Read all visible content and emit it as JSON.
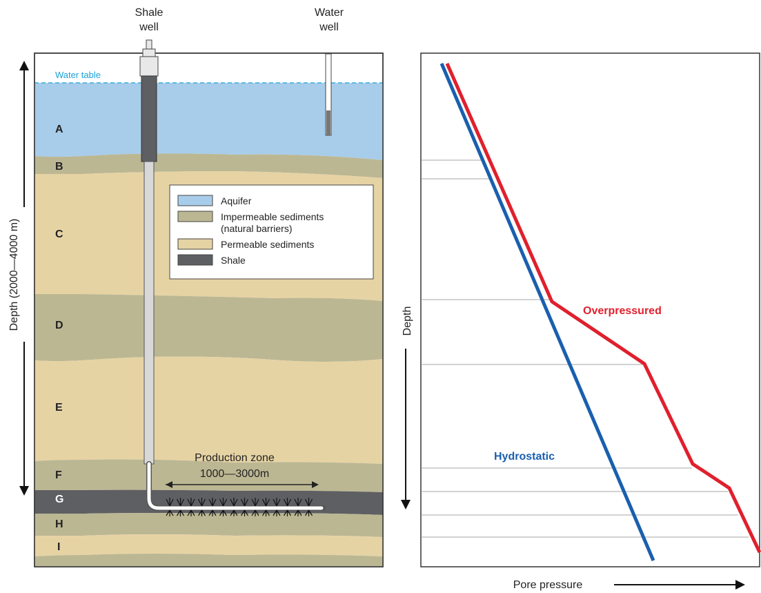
{
  "left_diagram": {
    "shale_well_label": [
      "Shale",
      "well"
    ],
    "water_well_label": [
      "Water",
      "well"
    ],
    "water_table_label": "Water table",
    "depth_axis_label": "Depth (2000—4000 m)",
    "layer_letters": [
      "A",
      "B",
      "C",
      "D",
      "E",
      "F",
      "G",
      "H",
      "I"
    ],
    "legend": {
      "items": [
        {
          "label": [
            "Aquifer"
          ],
          "color": "#a8cdea"
        },
        {
          "label": [
            "Impermeable sediments",
            "(natural barriers)"
          ],
          "color": "#bcb793"
        },
        {
          "label": [
            "Permeable sediments"
          ],
          "color": "#e6d3a4"
        },
        {
          "label": [
            "Shale"
          ],
          "color": "#5e5f63"
        }
      ]
    },
    "production_zone_title": "Production zone",
    "production_zone_range": "1000—3000m",
    "colors": {
      "aquifer": "#a8cdea",
      "impermeable": "#bcb793",
      "permeable": "#e6d3a4",
      "shale": "#5e5f63",
      "water_table_line": "#1aa3d6"
    }
  },
  "right_chart": {
    "ylabel": "Depth",
    "xlabel": "Pore pressure",
    "series": [
      {
        "name": "Hydrostatic",
        "color": "#1a5fae"
      },
      {
        "name": "Overpressured",
        "color": "#e0202d"
      }
    ]
  }
}
